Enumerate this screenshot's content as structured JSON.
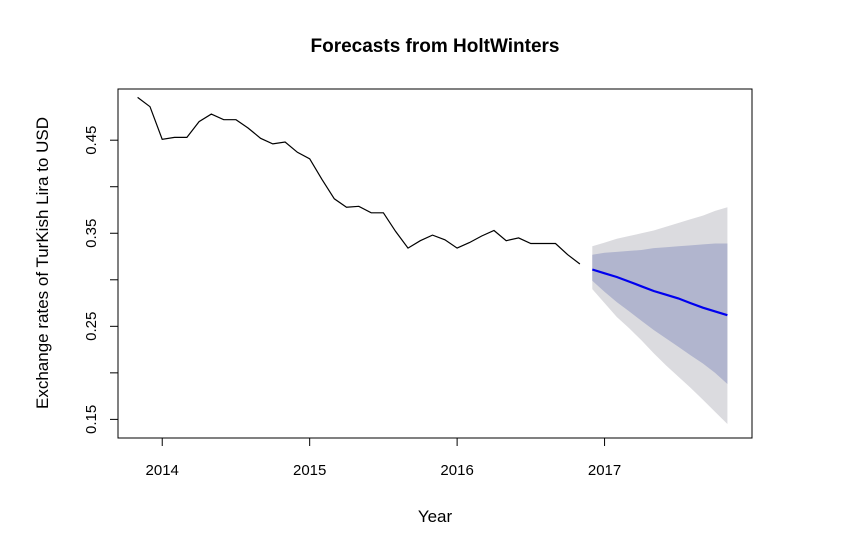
{
  "chart_data": {
    "type": "line",
    "title": "Forecasts from HoltWinters",
    "xlabel": "Year",
    "ylabel": "Exchange rates of TurKish Lira to USD",
    "xlim": [
      2013.7,
      2018.0
    ],
    "ylim": [
      0.13,
      0.505
    ],
    "x_ticks": [
      2014,
      2015,
      2016,
      2017
    ],
    "x_tick_labels": [
      "2014",
      "2015",
      "2016",
      "2017"
    ],
    "y_ticks": [
      0.15,
      0.2,
      0.25,
      0.3,
      0.35,
      0.4,
      0.45
    ],
    "y_tick_labels": [
      "0.15",
      "",
      "0.25",
      "",
      "0.35",
      "",
      "0.45"
    ],
    "colors": {
      "observed": "#000000",
      "forecast": "#0000ee",
      "interval_80": "#b1b5ce",
      "interval_95": "#dbdbdf"
    },
    "series": [
      {
        "role": "observed",
        "x": [
          2013.833,
          2013.917,
          2014.0,
          2014.083,
          2014.167,
          2014.25,
          2014.333,
          2014.417,
          2014.5,
          2014.583,
          2014.667,
          2014.75,
          2014.833,
          2014.917,
          2015.0,
          2015.083,
          2015.167,
          2015.25,
          2015.333,
          2015.417,
          2015.5,
          2015.583,
          2015.667,
          2015.75,
          2015.833,
          2015.917,
          2016.0,
          2016.083,
          2016.167,
          2016.25,
          2016.333,
          2016.417,
          2016.5,
          2016.583,
          2016.667,
          2016.75,
          2016.833
        ],
        "y": [
          0.496,
          0.486,
          0.451,
          0.453,
          0.453,
          0.47,
          0.478,
          0.472,
          0.472,
          0.463,
          0.452,
          0.446,
          0.448,
          0.437,
          0.43,
          0.408,
          0.387,
          0.378,
          0.379,
          0.372,
          0.372,
          0.352,
          0.334,
          0.342,
          0.348,
          0.343,
          0.334,
          0.34,
          0.347,
          0.353,
          0.342,
          0.345,
          0.339,
          0.339,
          0.339,
          0.327,
          0.317
        ]
      },
      {
        "role": "forecast",
        "x": [
          2016.917,
          2017.0,
          2017.083,
          2017.167,
          2017.25,
          2017.333,
          2017.417,
          2017.5,
          2017.583,
          2017.667,
          2017.75,
          2017.833
        ],
        "y": [
          0.311,
          0.307,
          0.303,
          0.298,
          0.293,
          0.288,
          0.284,
          0.28,
          0.275,
          0.27,
          0.266,
          0.262
        ],
        "lower80": [
          0.299,
          0.287,
          0.276,
          0.266,
          0.256,
          0.246,
          0.237,
          0.228,
          0.219,
          0.21,
          0.2,
          0.188
        ],
        "upper80": [
          0.327,
          0.329,
          0.33,
          0.331,
          0.332,
          0.334,
          0.335,
          0.336,
          0.337,
          0.338,
          0.339,
          0.339
        ],
        "lower95": [
          0.29,
          0.275,
          0.26,
          0.248,
          0.235,
          0.221,
          0.208,
          0.196,
          0.184,
          0.171,
          0.158,
          0.145
        ],
        "upper95": [
          0.336,
          0.34,
          0.344,
          0.347,
          0.35,
          0.353,
          0.357,
          0.361,
          0.365,
          0.369,
          0.374,
          0.378
        ]
      }
    ]
  }
}
